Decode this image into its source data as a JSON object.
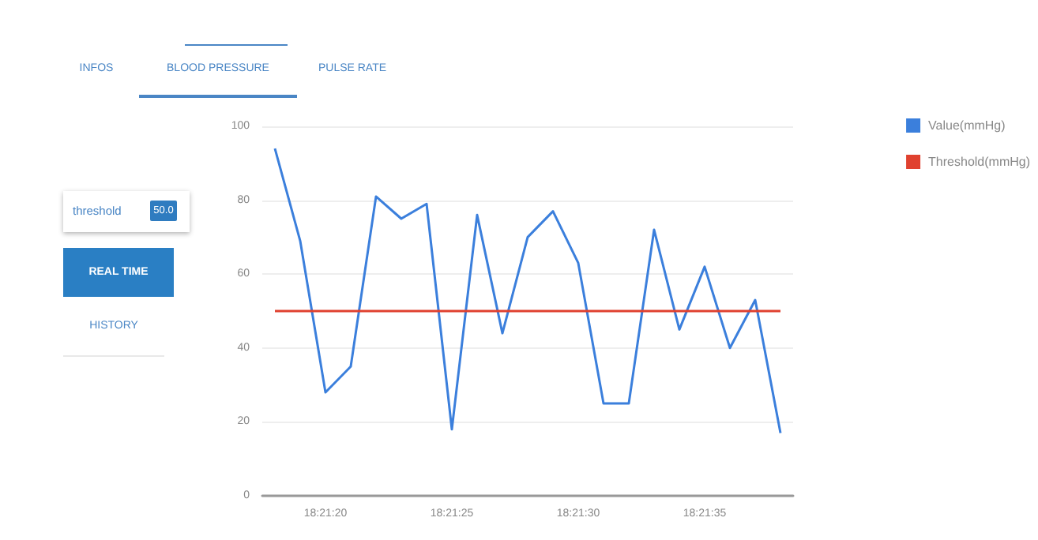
{
  "chart_data": {
    "type": "line",
    "categories": [
      null,
      null,
      "18:21:20",
      null,
      null,
      null,
      null,
      "18:21:25",
      null,
      null,
      null,
      null,
      "18:21:30",
      null,
      null,
      null,
      null,
      "18:21:35",
      null,
      null,
      null
    ],
    "series": [
      {
        "name": "Value(mmHg)",
        "color": "#3b7fdc",
        "values": [
          94,
          69,
          28,
          35,
          81,
          75,
          79,
          18,
          76,
          44,
          70,
          77,
          63,
          25,
          25,
          72,
          45,
          62,
          40,
          53,
          17
        ]
      },
      {
        "name": "Threshold(mmHg)",
        "color": "#e0412f",
        "values": [
          50,
          50,
          50,
          50,
          50,
          50,
          50,
          50,
          50,
          50,
          50,
          50,
          50,
          50,
          50,
          50,
          50,
          50,
          50,
          50,
          50
        ]
      }
    ],
    "ylim": [
      0,
      100
    ],
    "yticks": [
      0,
      20,
      40,
      60,
      80,
      100
    ],
    "grid": "y",
    "legend": "top right",
    "marker": "none",
    "line_style": "solid",
    "annotations": [
      "INFOS",
      "BLOOD PRESSURE",
      "PULSE RATE",
      "threshold",
      "50.0",
      "REAL TIME",
      "HISTORY"
    ]
  }
}
